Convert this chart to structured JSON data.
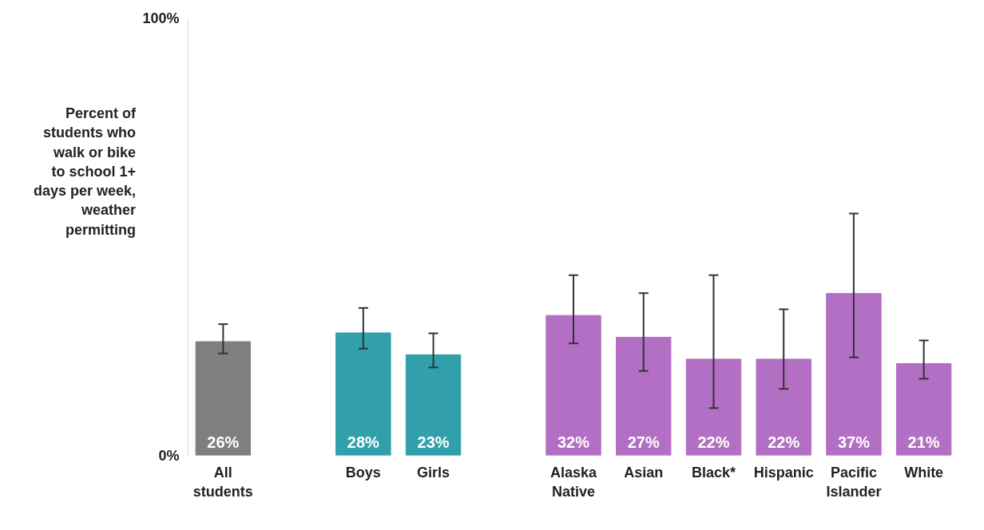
{
  "chart_data": {
    "type": "bar",
    "ylabel": "Percent of students who walk or bike to school 1+ days per week, weather permitting",
    "categories": [
      "All students",
      null,
      "Boys",
      "Girls",
      null,
      "Alaska Native",
      "Asian",
      "Black*",
      "Hispanic",
      "Pacific Islander",
      "White"
    ],
    "values": [
      26,
      null,
      28,
      23,
      null,
      32,
      27,
      22,
      22,
      37,
      21
    ],
    "colors": [
      "#7f7f7f",
      "#7f7f7f",
      "#31a0aa",
      "#31a0aa",
      "#b36fc4",
      "#b36fc4",
      "#b36fc4",
      "#b36fc4",
      "#b36fc4",
      "#b36fc4",
      "#b36fc4"
    ],
    "value_labels": [
      "26%",
      null,
      "28%",
      "23%",
      null,
      "32%",
      "27%",
      "22%",
      "22%",
      "37%",
      "21%"
    ],
    "errors": [
      [
        23.3,
        30.0
      ],
      null,
      [
        24.4,
        33.7
      ],
      [
        20.1,
        27.9
      ],
      null,
      [
        25.6,
        41.2
      ],
      [
        19.3,
        37.1
      ],
      [
        10.8,
        41.2
      ],
      [
        15.2,
        33.4
      ],
      [
        22.4,
        55.3
      ],
      [
        17.5,
        26.3
      ]
    ],
    "ylim": [
      0,
      100
    ],
    "yticks": [
      {
        "value": 0,
        "label": "0%"
      },
      {
        "value": 100,
        "label": "100%"
      }
    ],
    "grid": false
  }
}
